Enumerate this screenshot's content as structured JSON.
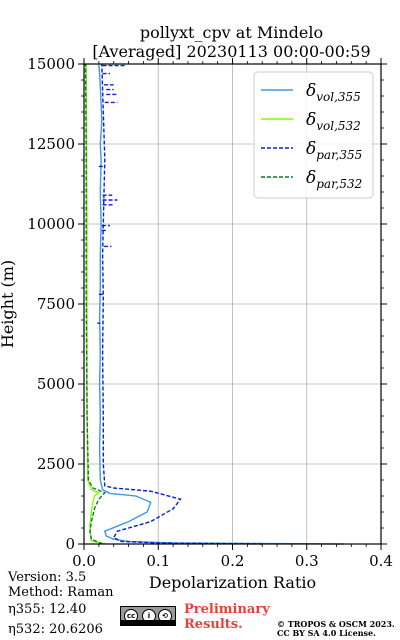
{
  "chart_data": {
    "type": "line",
    "title_line1": "pollyxt_cpv at Mindelo",
    "title_line2": "[Averaged] 20230113 00:00-00:59",
    "xlabel": "Depolarization Ratio",
    "ylabel": "Height (m)",
    "xlim": [
      0,
      0.4
    ],
    "ylim": [
      0,
      15000
    ],
    "x_ticks": [
      0.0,
      0.1,
      0.2,
      0.3,
      0.4
    ],
    "x_tick_labels": [
      "0.0",
      "0.1",
      "0.2",
      "0.3",
      "0.4"
    ],
    "y_ticks": [
      0,
      2500,
      5000,
      7500,
      10000,
      12500,
      15000
    ],
    "y_tick_labels": [
      "0",
      "2500",
      "5000",
      "7500",
      "10000",
      "12500",
      "15000"
    ],
    "grid": true,
    "legend_position": "top-right",
    "series": [
      {
        "name": "δvol,355",
        "legend_main": "δ",
        "legend_sub": "vol,355",
        "color": "#3b9ae1",
        "dash": "solid",
        "points": [
          [
            0.35,
            0
          ],
          [
            0.12,
            30
          ],
          [
            0.06,
            80
          ],
          [
            0.04,
            150
          ],
          [
            0.03,
            250
          ],
          [
            0.028,
            400
          ],
          [
            0.06,
            700
          ],
          [
            0.085,
            1000
          ],
          [
            0.09,
            1300
          ],
          [
            0.07,
            1500
          ],
          [
            0.035,
            1580
          ],
          [
            0.025,
            1700
          ],
          [
            0.022,
            2000
          ],
          [
            0.021,
            3000
          ],
          [
            0.022,
            4000
          ],
          [
            0.021,
            5000
          ],
          [
            0.022,
            6000
          ],
          [
            0.021,
            7000
          ],
          [
            0.022,
            8000
          ],
          [
            0.022,
            9000
          ],
          [
            0.023,
            10000
          ],
          [
            0.022,
            11000
          ],
          [
            0.023,
            12000
          ],
          [
            0.022,
            12500
          ],
          [
            0.024,
            13200
          ],
          [
            0.023,
            13800
          ],
          [
            0.022,
            14300
          ],
          [
            0.021,
            14700
          ],
          [
            0.02,
            15000
          ]
        ]
      },
      {
        "name": "δvol,532",
        "legend_main": "δ",
        "legend_sub": "vol,532",
        "color": "#7fff00",
        "dash": "solid",
        "points": [
          [
            0.03,
            0
          ],
          [
            0.01,
            100
          ],
          [
            0.009,
            300
          ],
          [
            0.008,
            600
          ],
          [
            0.01,
            1000
          ],
          [
            0.012,
            1300
          ],
          [
            0.014,
            1500
          ],
          [
            0.02,
            1600
          ],
          [
            0.01,
            1700
          ],
          [
            0.005,
            2000
          ],
          [
            0.004,
            5000
          ],
          [
            0.004,
            10000
          ],
          [
            0.003,
            15000
          ]
        ]
      },
      {
        "name": "δpar,355",
        "legend_main": "δ",
        "legend_sub": "par,355",
        "color": "#0a1fd0",
        "dash": "dashed",
        "points": [
          [
            0.24,
            0
          ],
          [
            0.1,
            30
          ],
          [
            0.05,
            80
          ],
          [
            0.04,
            200
          ],
          [
            0.045,
            400
          ],
          [
            0.09,
            700
          ],
          [
            0.12,
            1100
          ],
          [
            0.13,
            1400
          ],
          [
            0.09,
            1650
          ],
          [
            0.04,
            1750
          ],
          [
            0.028,
            1820
          ],
          [
            0.026,
            2500
          ],
          [
            0.026,
            4000
          ],
          [
            0.025,
            6000
          ],
          [
            0.026,
            7700
          ],
          [
            0.025,
            9000
          ],
          [
            0.026,
            10000
          ],
          [
            0.027,
            11000
          ],
          [
            0.028,
            12000
          ],
          [
            0.026,
            13500
          ],
          [
            0.024,
            15000
          ]
        ],
        "spikes": [
          [
            0.028,
            0.045,
            13800
          ],
          [
            0.03,
            0.045,
            14050
          ],
          [
            0.03,
            0.04,
            14200
          ],
          [
            0.027,
            0.04,
            14350
          ],
          [
            0.025,
            0.035,
            14700
          ],
          [
            0.025,
            0.055,
            14950
          ],
          [
            0.025,
            0.038,
            10900
          ],
          [
            0.025,
            0.045,
            10750
          ],
          [
            0.025,
            0.04,
            10600
          ],
          [
            0.024,
            0.035,
            9950
          ],
          [
            0.024,
            0.032,
            9800
          ],
          [
            0.027,
            0.037,
            9300
          ],
          [
            0.02,
            0.028,
            7800
          ],
          [
            0.018,
            0.022,
            6900
          ],
          [
            0.02,
            0.026,
            11800
          ]
        ]
      },
      {
        "name": "δpar,532",
        "legend_main": "δ",
        "legend_sub": "par,532",
        "color": "#0a7a2d",
        "dash": "dashed",
        "points": [
          [
            0.025,
            0
          ],
          [
            0.01,
            150
          ],
          [
            0.008,
            400
          ],
          [
            0.01,
            700
          ],
          [
            0.014,
            1100
          ],
          [
            0.02,
            1400
          ],
          [
            0.028,
            1600
          ],
          [
            0.012,
            1750
          ],
          [
            0.006,
            2000
          ],
          [
            0.004,
            4000
          ],
          [
            0.003,
            8000
          ],
          [
            0.003,
            12000
          ],
          [
            0.002,
            15000
          ]
        ]
      }
    ]
  },
  "footer": {
    "version": "Version: 3.5",
    "method": "Method: Raman",
    "eta355_label": "η355:",
    "eta355_value": "12.40",
    "eta532_label": "η532:",
    "eta532_value": "20.6206",
    "preliminary_line1": "Preliminary",
    "preliminary_line2": "Results.",
    "copyright_line1": "© TROPOS & OSCM 2023.",
    "copyright_line2": "CC BY SA 4.0 License.",
    "badge_cc": "cc",
    "badge_by": "i",
    "badge_sa": "⟲",
    "badge_strip": "BY  SA"
  }
}
